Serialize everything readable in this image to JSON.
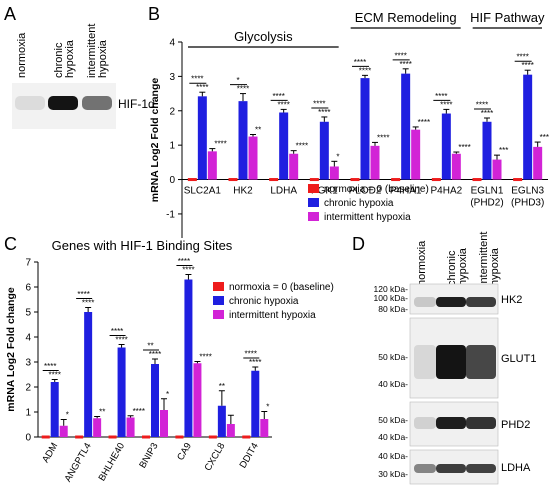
{
  "panels": {
    "a": "A",
    "b": "B",
    "c": "C",
    "d": "D"
  },
  "blot_a": {
    "lanes": [
      "normoxia",
      "chronic hypoxia",
      "intermittent hypoxia"
    ],
    "lane_lines": {
      "normoxia": [
        "normoxia"
      ],
      "chronic hypoxia": [
        "chronic",
        "hypoxia"
      ],
      "intermittent hypoxia": [
        "intermittent",
        "hypoxia"
      ]
    },
    "label": "HIF-1α",
    "band_intensity": [
      0.05,
      1.0,
      0.55
    ]
  },
  "chart_data": [
    {
      "type": "bar",
      "panel": "B",
      "group_headers": [
        {
          "label": "Glycolysis",
          "categories": [
            "SLC2A1",
            "HK2",
            "LDHA",
            "PGK1"
          ]
        },
        {
          "label": "ECM Remodeling",
          "categories": [
            "PLOD2",
            "P4HA1",
            "P4HA2"
          ]
        },
        {
          "label": "HIF Pathway",
          "categories": [
            "EGLN1 (PHD2)",
            "EGLN3 (PHD3)"
          ]
        }
      ],
      "categories": [
        "SLC2A1",
        "HK2",
        "LDHA",
        "PGK1",
        "PLOD2",
        "P4HA1",
        "P4HA2",
        "EGLN1 (PHD2)",
        "EGLN3 (PHD3)"
      ],
      "category_lines": [
        [
          "SLC2A1"
        ],
        [
          "HK2"
        ],
        [
          "LDHA"
        ],
        [
          "PGK1"
        ],
        [
          "PLOD2"
        ],
        [
          "P4HA1"
        ],
        [
          "P4HA2"
        ],
        [
          "EGLN1",
          "(PHD2)"
        ],
        [
          "EGLN3",
          "(PHD3)"
        ]
      ],
      "series": [
        {
          "name": "normoxia = 0 (baseline)",
          "color": "#ee1c1c",
          "values": [
            0,
            0,
            0,
            0,
            0,
            0,
            0,
            0,
            0
          ],
          "errors": [
            0,
            0,
            0,
            0,
            0,
            0,
            0,
            0,
            0
          ],
          "stars": [
            "",
            "",
            "",
            "",
            "",
            "",
            "",
            "",
            ""
          ]
        },
        {
          "name": "chronic hypoxia",
          "color": "#1f1fe0",
          "values": [
            2.42,
            2.28,
            1.95,
            1.68,
            2.95,
            3.08,
            1.92,
            1.68,
            3.05
          ],
          "errors": [
            0.12,
            0.22,
            0.09,
            0.14,
            0.08,
            0.14,
            0.12,
            0.11,
            0.13
          ],
          "stars": [
            "****",
            "****",
            "****",
            "****",
            "****",
            "****",
            "****",
            "****",
            "****"
          ]
        },
        {
          "name": "intermittent hypoxia",
          "color": "#d223d6",
          "values": [
            0.82,
            1.25,
            0.75,
            0.38,
            0.98,
            1.45,
            0.75,
            0.58,
            0.95
          ],
          "errors": [
            0.08,
            0.06,
            0.09,
            0.15,
            0.1,
            0.08,
            0.05,
            0.13,
            0.14
          ],
          "stars": [
            "****",
            "**",
            "****",
            "*",
            "****",
            "****",
            "****",
            "***",
            "***"
          ]
        }
      ],
      "comparison_stars": [
        "****",
        "*",
        "****",
        "****",
        "****",
        "****",
        "****",
        "****",
        "****"
      ],
      "ylabel": "mRNA Log2 Fold change",
      "ylim": [
        -1.7,
        4.0
      ],
      "yticks": [
        -1,
        0,
        1,
        2,
        3,
        4
      ],
      "legend_position": "bottom-right"
    },
    {
      "type": "bar",
      "panel": "C",
      "title": "Genes with  HIF-1 Binding Sites",
      "categories": [
        "ADM",
        "ANGPTL4",
        "BHLHE40",
        "BNIP3",
        "CA9",
        "CXCL8",
        "DDIT4"
      ],
      "series": [
        {
          "name": "normoxia = 0 (baseline)",
          "color": "#ee1c1c",
          "values": [
            0,
            0,
            0,
            0,
            0,
            0,
            0
          ],
          "errors": [
            0,
            0,
            0,
            0,
            0,
            0,
            0
          ],
          "stars": [
            "",
            "",
            "",
            "",
            "",
            "",
            ""
          ]
        },
        {
          "name": "chronic hypoxia",
          "color": "#1f1fe0",
          "values": [
            2.2,
            5.0,
            3.58,
            2.92,
            6.3,
            1.25,
            2.65
          ],
          "errors": [
            0.1,
            0.18,
            0.12,
            0.2,
            0.2,
            0.6,
            0.15
          ],
          "stars": [
            "****",
            "****",
            "****",
            "****",
            "****",
            "**",
            "****"
          ]
        },
        {
          "name": "intermittent hypoxia",
          "color": "#d223d6",
          "values": [
            0.45,
            0.75,
            0.78,
            1.08,
            2.95,
            0.52,
            0.72
          ],
          "errors": [
            0.25,
            0.07,
            0.07,
            0.45,
            0.07,
            0.35,
            0.3
          ],
          "stars": [
            "*",
            "**",
            "****",
            "*",
            "****",
            "",
            "*"
          ]
        }
      ],
      "comparison_stars": [
        "****",
        "****",
        "****",
        "**",
        "****",
        "",
        "****"
      ],
      "ylabel": "mRNA Log2 Fold change",
      "ylim": [
        0,
        7
      ],
      "yticks": [
        0,
        1,
        2,
        3,
        4,
        5,
        6,
        7
      ],
      "legend_position": "top-right"
    }
  ],
  "blot_d": {
    "lanes": [
      "normoxia",
      "chronic hypoxia",
      "intermittent hypoxia"
    ],
    "lane_lines": {
      "normoxia": [
        "normoxia"
      ],
      "chronic hypoxia": [
        "chronic",
        "hypoxia"
      ],
      "intermittent hypoxia": [
        "intermittent",
        "hypoxia"
      ]
    },
    "blots": [
      {
        "protein": "HK2",
        "markers": [
          "120 kDa-",
          "100 kDa-",
          "80 kDa-"
        ],
        "band_intensity": [
          0.12,
          0.95,
          0.8
        ]
      },
      {
        "protein": "GLUT1",
        "markers": [
          "50 kDa-",
          "40 kDa-"
        ],
        "band_intensity": [
          0.05,
          1.0,
          0.75
        ]
      },
      {
        "protein": "PHD2",
        "markers": [
          "50 kDa-",
          "40 kDa-"
        ],
        "band_intensity": [
          0.08,
          0.95,
          0.85
        ]
      },
      {
        "protein": "LDHA",
        "markers": [
          "40 kDa-",
          "30 kDa-"
        ],
        "band_intensity": [
          0.45,
          0.8,
          0.78
        ]
      }
    ]
  }
}
